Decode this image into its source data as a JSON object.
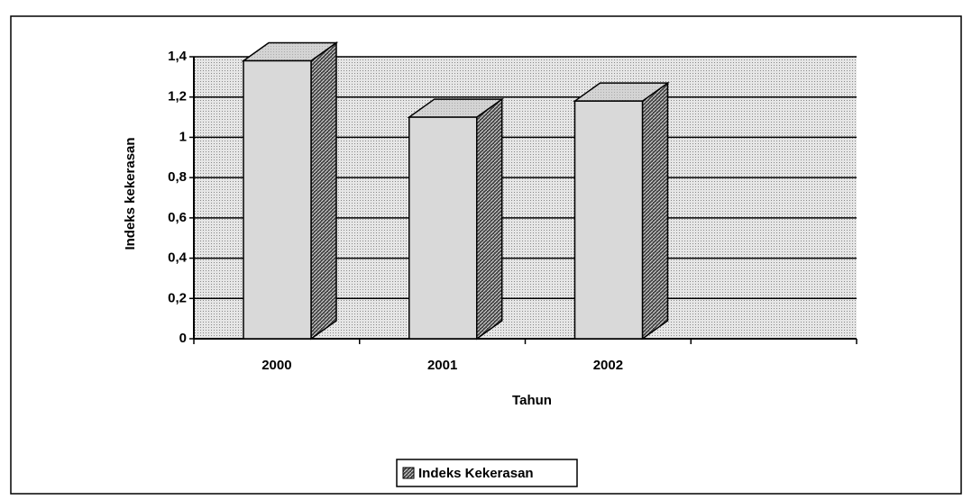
{
  "chart_data": {
    "type": "bar3d",
    "xlabel": "Tahun",
    "ylabel": "Indeks kekerasan",
    "categories": [
      "2000",
      "2001",
      "2002",
      null
    ],
    "series": [
      {
        "name": "Indeks Kekerasan",
        "color": "#d9d9d9",
        "values": [
          1.38,
          1.1,
          1.18,
          null
        ]
      }
    ],
    "ylim": [
      0,
      1.4
    ],
    "yticks": [
      0,
      {
        "value": 0.2,
        "label": "0,2"
      },
      {
        "value": 0.4,
        "label": "0,4"
      },
      {
        "value": 0.6,
        "label": "0,6"
      },
      {
        "value": 0.8,
        "label": "0,8"
      },
      1,
      {
        "value": 1.2,
        "label": "1,2"
      },
      {
        "value": 1.4,
        "label": "1,4"
      }
    ],
    "grid": true,
    "legend": "bottom"
  }
}
